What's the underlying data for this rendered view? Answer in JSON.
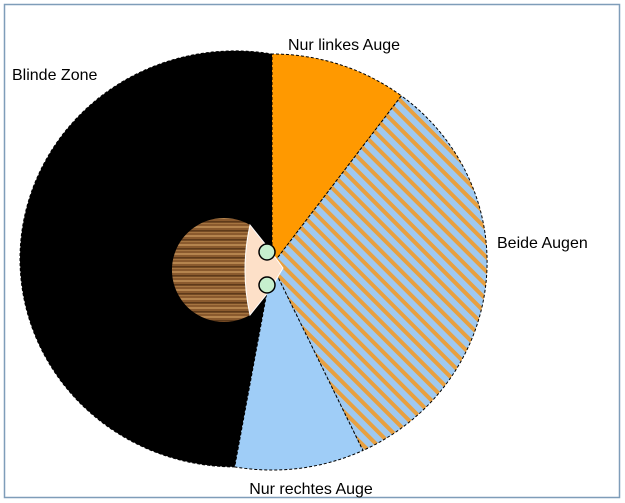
{
  "diagram": {
    "labels": {
      "left_eye": "Nur linkes Auge",
      "blind_zone": "Blinde Zone",
      "both_eyes": "Beide Augen",
      "right_eye": "Nur rechtes Auge"
    }
  }
}
